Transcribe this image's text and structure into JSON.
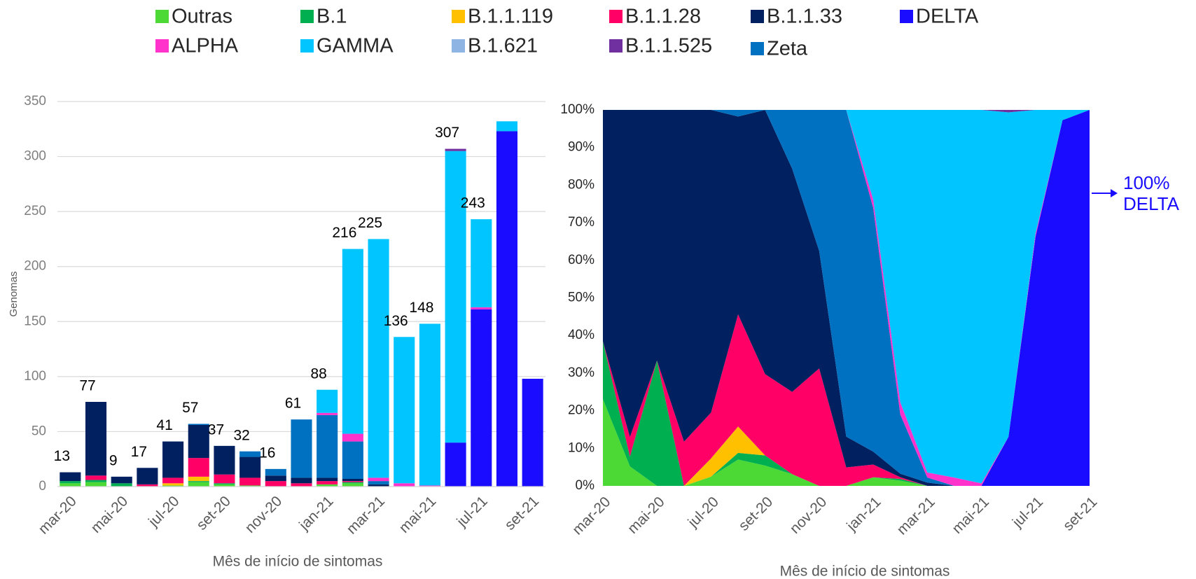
{
  "chart_data": [
    {
      "type": "bar",
      "stacking": "normal",
      "ylabel": "Genomas",
      "xlabel": "Mês de início de sintomas",
      "categories": [
        "mar-20",
        null,
        "mai-20",
        null,
        "jul-20",
        null,
        "set-20",
        null,
        "nov-20",
        null,
        "jan-21",
        null,
        "mar-21",
        null,
        "mai-21",
        null,
        "jul-21",
        null,
        "set-21"
      ],
      "ylim": [
        0,
        350
      ],
      "yticks": [
        0,
        50,
        100,
        150,
        200,
        250,
        300,
        350
      ],
      "grid": true,
      "total_labels": [
        13,
        77,
        9,
        17,
        41,
        57,
        37,
        32,
        16,
        61,
        88,
        216,
        225,
        136,
        148,
        307,
        243,
        null,
        null
      ],
      "series": [
        {
          "name": "Outras",
          "color": "#4cd935",
          "values": [
            3,
            4,
            0,
            0,
            1,
            4,
            2,
            1,
            0,
            0,
            2,
            3,
            0,
            0,
            0,
            0,
            0,
            0,
            0
          ]
        },
        {
          "name": "B.1",
          "color": "#00b050",
          "values": [
            2,
            2,
            3,
            0,
            0,
            1,
            1,
            0,
            0,
            0,
            0,
            1,
            0,
            0,
            0,
            0,
            0,
            0,
            0
          ]
        },
        {
          "name": "B.1.1.119",
          "color": "#ffc000",
          "values": [
            0,
            0,
            0,
            0,
            2,
            4,
            0,
            0,
            0,
            0,
            0,
            0,
            0,
            0,
            0,
            0,
            0,
            0,
            0
          ]
        },
        {
          "name": "B.1.1.28",
          "color": "#ff0066",
          "values": [
            0,
            4,
            0,
            2,
            5,
            17,
            8,
            7,
            5,
            3,
            3,
            1,
            0,
            0,
            0,
            0,
            0,
            0,
            0
          ]
        },
        {
          "name": "B.1.1.33",
          "color": "#002060",
          "values": [
            8,
            67,
            6,
            15,
            33,
            30,
            26,
            19,
            5,
            5,
            3,
            2,
            2,
            0,
            0,
            0,
            0,
            0,
            0
          ]
        },
        {
          "name": "DELTA",
          "color": "#1a0dff",
          "values": [
            0,
            0,
            0,
            0,
            0,
            0,
            0,
            0,
            0,
            0,
            0,
            0,
            0,
            0,
            0,
            40,
            161,
            323,
            98
          ]
        },
        {
          "name": "Zeta",
          "color": "#0070c0",
          "values": [
            0,
            0,
            0,
            0,
            0,
            1,
            0,
            5,
            6,
            53,
            57,
            34,
            3,
            0,
            0,
            0,
            0,
            0,
            0
          ]
        },
        {
          "name": "ALPHA",
          "color": "#ff33cc",
          "values": [
            0,
            0,
            0,
            0,
            0,
            0,
            0,
            0,
            0,
            0,
            2,
            7,
            3,
            3,
            1,
            0,
            2,
            0,
            0
          ]
        },
        {
          "name": "GAMMA",
          "color": "#00c5ff",
          "values": [
            0,
            0,
            0,
            0,
            0,
            0,
            0,
            0,
            0,
            0,
            21,
            168,
            217,
            133,
            147,
            265,
            80,
            9,
            0
          ]
        },
        {
          "name": "B.1.621",
          "color": "#8db4e2",
          "values": [
            0,
            0,
            0,
            0,
            0,
            0,
            0,
            0,
            0,
            0,
            0,
            0,
            0,
            0,
            0,
            0,
            0,
            0,
            0
          ]
        },
        {
          "name": "B.1.1.525",
          "color": "#7030a0",
          "values": [
            0,
            0,
            0,
            0,
            0,
            0,
            0,
            0,
            0,
            0,
            0,
            0,
            0,
            0,
            0,
            2,
            0,
            0,
            0
          ]
        }
      ]
    },
    {
      "type": "area",
      "stacking": "percent",
      "xlabel": "Mês de início de sintomas",
      "categories": [
        "mar-20",
        null,
        "mai-20",
        null,
        "jul-20",
        null,
        "set-20",
        null,
        "nov-20",
        null,
        "jan-21",
        null,
        "mar-21",
        null,
        "mai-21",
        null,
        "jul-21",
        null,
        "set-21"
      ],
      "ylim": [
        0,
        100
      ],
      "yticks": [
        {
          "value": 0,
          "label": "0%"
        },
        {
          "value": 10,
          "label": "10%"
        },
        {
          "value": 20,
          "label": "20%"
        },
        {
          "value": 30,
          "label": "30%"
        },
        {
          "value": 40,
          "label": "40%"
        },
        {
          "value": 50,
          "label": "50%"
        },
        {
          "value": 60,
          "label": "60%"
        },
        {
          "value": 70,
          "label": "70%"
        },
        {
          "value": 80,
          "label": "80%"
        },
        {
          "value": 90,
          "label": "90%"
        },
        {
          "value": 100,
          "label": "100%"
        }
      ],
      "annotation": [
        "100%",
        "DELTA"
      ],
      "annotation_color": "#1a0dff"
    }
  ]
}
